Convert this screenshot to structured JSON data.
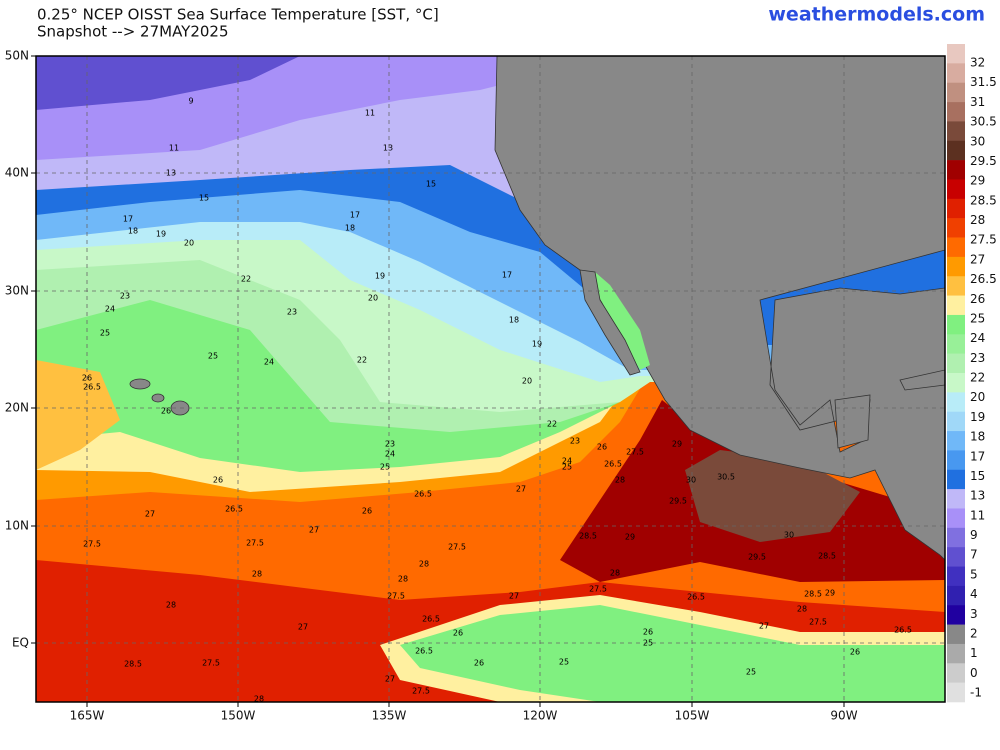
{
  "header": {
    "title": "0.25° NCEP OISST Sea Surface Temperature [SST, °C]",
    "subtitle": "Snapshot --> 27MAY2025",
    "brand": "weathermodels.com"
  },
  "map": {
    "lat_labels": [
      "50N",
      "40N",
      "30N",
      "20N",
      "10N",
      "EQ"
    ],
    "lon_labels": [
      "165W",
      "150W",
      "135W",
      "120W",
      "105W",
      "90W"
    ]
  },
  "colorbar": {
    "labels": [
      "32",
      "31.5",
      "31",
      "30.5",
      "30",
      "29.5",
      "29",
      "28.5",
      "28",
      "27.5",
      "27",
      "26.5",
      "26",
      "25",
      "24",
      "23",
      "22",
      "20",
      "19",
      "18",
      "17",
      "15",
      "13",
      "11",
      "9",
      "7",
      "5",
      "4",
      "3",
      "2",
      "1",
      "0",
      "-1"
    ],
    "colors": [
      "#e8c8c0",
      "#d8aca0",
      "#c09080",
      "#a87060",
      "#7a4a3a",
      "#5c3020",
      "#a00000",
      "#c80000",
      "#e02000",
      "#f04000",
      "#ff6a00",
      "#ff9a00",
      "#ffc040",
      "#fff0a0",
      "#80f080",
      "#98f098",
      "#b0f0b0",
      "#c8f8c8",
      "#b8ecf8",
      "#a0d8f8",
      "#70b8f8",
      "#4898f0",
      "#2070e0",
      "#c0b8f8",
      "#a890f8",
      "#8070e0",
      "#6050d0",
      "#4030c0",
      "#3020b0",
      "#2000a0",
      "#888888",
      "#aaaaaa",
      "#cccccc",
      "#e0e0e0"
    ]
  },
  "contour_labels": [
    "9",
    "11",
    "11",
    "13",
    "13",
    "15",
    "15",
    "17",
    "17",
    "18",
    "18",
    "19",
    "20",
    "22",
    "19",
    "17",
    "23",
    "20",
    "24",
    "23",
    "18",
    "25",
    "19",
    "25",
    "24",
    "22",
    "26",
    "26.5",
    "20",
    "26",
    "22",
    "23",
    "23",
    "24",
    "26",
    "27.5",
    "29",
    "24",
    "25",
    "25",
    "26.5",
    "28",
    "30",
    "30.5",
    "26",
    "26.5",
    "27",
    "29.5",
    "26.5",
    "26",
    "27",
    "27",
    "28.5",
    "29",
    "30",
    "27.5",
    "27.5",
    "27.5",
    "29.5",
    "28.5",
    "28",
    "28",
    "28",
    "28",
    "27.5",
    "27.5",
    "27",
    "28.5",
    "29",
    "26.5",
    "28",
    "28",
    "26.5",
    "27.5",
    "27",
    "26",
    "27",
    "26",
    "25",
    "26.5",
    "26.5",
    "26",
    "28.5",
    "27.5",
    "26",
    "25",
    "25",
    "27",
    "27.5",
    "28"
  ]
}
